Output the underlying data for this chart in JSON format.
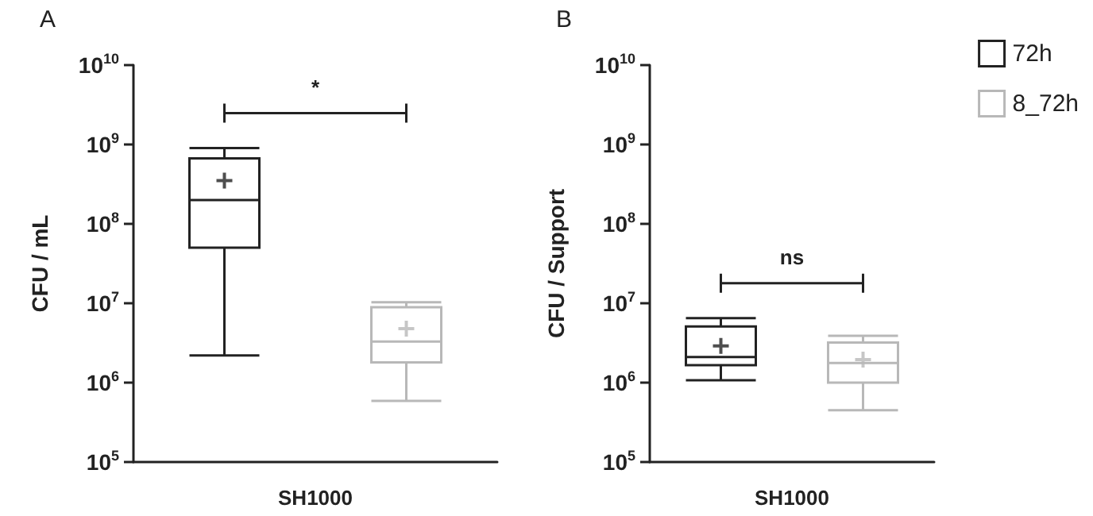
{
  "chart_data": [
    {
      "type": "box",
      "title": "A",
      "ylabel": "CFU / mL",
      "xlabel": "SH1000",
      "categories": [
        null,
        null
      ],
      "log": true,
      "ylim": [
        100000,
        10000000000
      ],
      "yticks": [
        {
          "value": 100000,
          "label": "10$^{5}$"
        },
        {
          "value": 1000000,
          "label": "10$^{6}$"
        },
        {
          "value": 10000000,
          "label": "10$^{7}$"
        },
        {
          "value": 100000000,
          "label": "10$^{8}$"
        },
        {
          "value": 1000000000,
          "label": "10$^{9}$"
        },
        {
          "value": 10000000000,
          "label": "10$^{10}$"
        }
      ],
      "grid": false,
      "legend": false,
      "annotations": [
        "*"
      ],
      "series": [
        {
          "color": "#222222",
          "boxes": [
            {
              "low": 2200000,
              "q1": 50000000,
              "median": 200000000,
              "q3": 670000000,
              "high": 900000000,
              "mean": 350000000
            },
            null
          ]
        },
        {
          "color": "#b8b8b8",
          "boxes": [
            null,
            {
              "low": 590000,
              "q1": 1800000,
              "median": 3300000,
              "q3": 8900000,
              "high": 10300000,
              "mean": 4800000
            }
          ]
        }
      ]
    },
    {
      "type": "box",
      "title": "B",
      "ylabel": "CFU / Support",
      "xlabel": "SH1000",
      "categories": [
        null,
        null
      ],
      "log": true,
      "ylim": [
        100000,
        10000000000
      ],
      "yticks": [
        {
          "value": 100000,
          "label": "10$^{5}$"
        },
        {
          "value": 1000000,
          "label": "10$^{6}$"
        },
        {
          "value": 10000000,
          "label": "10$^{7}$"
        },
        {
          "value": 100000000,
          "label": "10$^{8}$"
        },
        {
          "value": 1000000000,
          "label": "10$^{9}$"
        },
        {
          "value": 10000000000,
          "label": "10$^{10}$"
        }
      ],
      "grid": false,
      "legend": "top right",
      "annotations": [
        "ns"
      ],
      "series": [
        {
          "name": "72h",
          "color": "#222222",
          "boxes": [
            {
              "low": 1070000,
              "q1": 1660000,
              "median": 2100000,
              "q3": 5100000,
              "high": 6500000,
              "mean": 2900000
            },
            null
          ]
        },
        {
          "name": "8_72h",
          "color": "#b8b8b8",
          "boxes": [
            null,
            {
              "low": 450000,
              "q1": 1000000,
              "median": 1770000,
              "q3": 3200000,
              "high": 3900000,
              "mean": 1950000
            }
          ]
        }
      ]
    }
  ]
}
